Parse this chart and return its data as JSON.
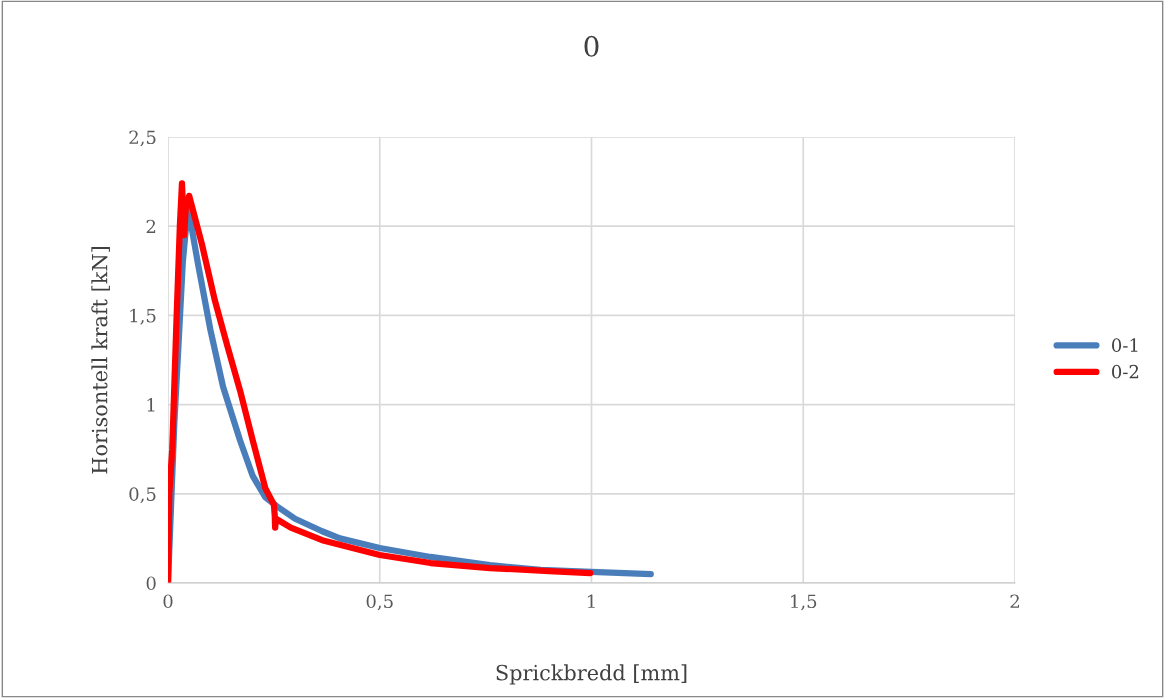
{
  "chart_data": {
    "type": "line",
    "title": "0",
    "xlabel": "Sprickbredd [mm]",
    "ylabel": "Horisontell kraft [kN]",
    "xlim": [
      0,
      2
    ],
    "xticks": [
      {
        "value": 0,
        "label": "0"
      },
      {
        "value": 0.5,
        "label": "0,5"
      },
      {
        "value": 1,
        "label": "1"
      },
      {
        "value": 1.5,
        "label": "1,5"
      },
      {
        "value": 2,
        "label": "2"
      }
    ],
    "ylim": [
      0,
      2.5
    ],
    "yticks": [
      {
        "value": 0,
        "label": "0"
      },
      {
        "value": 0.5,
        "label": "0,5"
      },
      {
        "value": 1,
        "label": "1"
      },
      {
        "value": 1.5,
        "label": "1,5"
      },
      {
        "value": 2,
        "label": "2"
      },
      {
        "value": 2.5,
        "label": "2,5"
      }
    ],
    "grid": true,
    "legend": "right",
    "marker": "none",
    "line_style": "solid",
    "series": [
      {
        "name": "0-1",
        "color": "#4a7ebb",
        "x": [
          0,
          0.005,
          0.015,
          0.024,
          0.035,
          0.047,
          0.07,
          0.1,
          0.13,
          0.17,
          0.2,
          0.23,
          0.257,
          0.3,
          0.364,
          0.406,
          0.5,
          0.62,
          0.76,
          0.88,
          1.0,
          1.14
        ],
        "values": [
          0,
          0.3,
          0.9,
          1.3,
          1.8,
          2.11,
          1.8,
          1.42,
          1.1,
          0.8,
          0.6,
          0.48,
          0.43,
          0.36,
          0.29,
          0.25,
          0.196,
          0.146,
          0.1,
          0.073,
          0.062,
          0.05
        ]
      },
      {
        "name": "0-2",
        "color": "#ff0000",
        "x": [
          0,
          0.003,
          0.01,
          0.02,
          0.028,
          0.033,
          0.038,
          0.042,
          0.05,
          0.08,
          0.11,
          0.14,
          0.17,
          0.2,
          0.23,
          0.25,
          0.252,
          0.253,
          0.255,
          0.29,
          0.364,
          0.5,
          0.62,
          0.76,
          0.9,
          0.997
        ],
        "values": [
          0,
          0.5,
          0.75,
          1.47,
          2.0,
          2.24,
          1.95,
          2.1,
          2.17,
          1.9,
          1.59,
          1.33,
          1.08,
          0.8,
          0.53,
          0.44,
          0.38,
          0.31,
          0.36,
          0.31,
          0.24,
          0.157,
          0.112,
          0.084,
          0.067,
          0.056
        ]
      }
    ]
  }
}
